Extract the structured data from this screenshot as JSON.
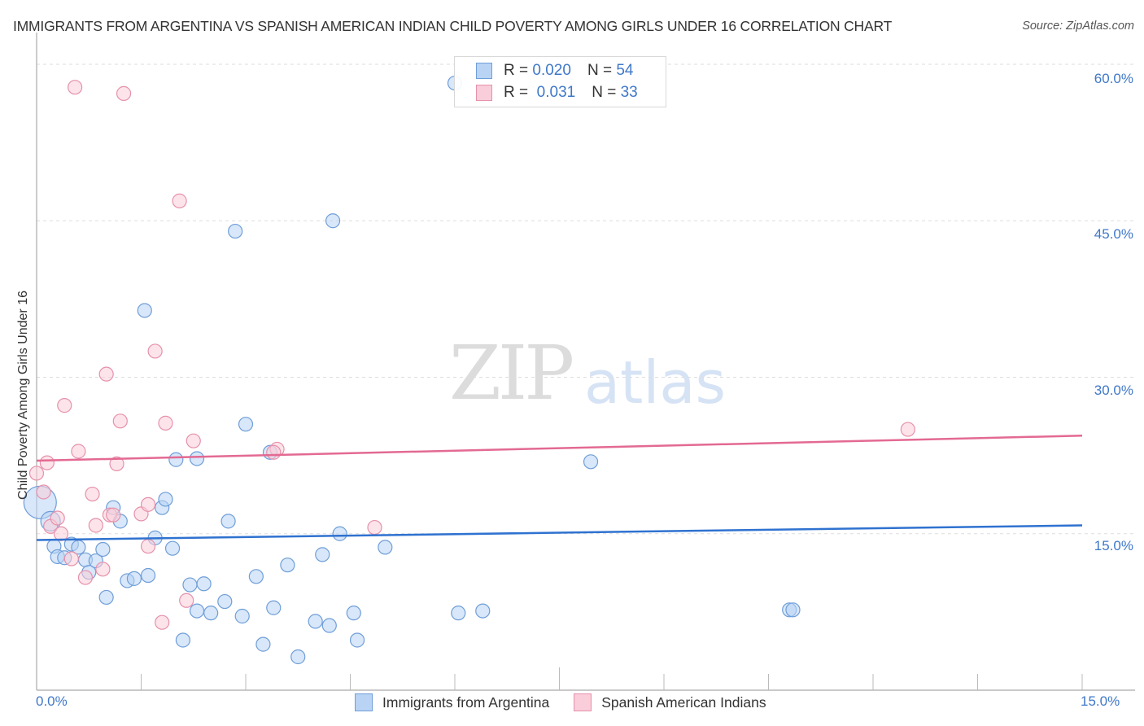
{
  "header": {
    "title": "IMMIGRANTS FROM ARGENTINA VS SPANISH AMERICAN INDIAN CHILD POVERTY AMONG GIRLS UNDER 16 CORRELATION CHART",
    "source": "Source: ZipAtlas.com"
  },
  "watermark": {
    "zip": "ZIP",
    "atlas": "atlas"
  },
  "legend": {
    "series": [
      {
        "r_label": "R =",
        "r_value": "0.020",
        "n_label": "N =",
        "n_value": "54",
        "color": "#a9c8f0",
        "border": "#6f9ed8"
      },
      {
        "r_label": "R =",
        "r_value": "0.031",
        "n_label": "N =",
        "n_value": "33",
        "color": "#f8c4d2",
        "border": "#e691ab"
      }
    ]
  },
  "axes": {
    "ylabel": "Child Poverty Among Girls Under 16",
    "y_ticks": [
      "60.0%",
      "45.0%",
      "30.0%",
      "15.0%"
    ],
    "x_ticks": [
      "0.0%",
      "15.0%"
    ]
  },
  "bottom_legend": [
    {
      "label": "Immigrants from Argentina",
      "color": "#b8d3f4",
      "border": "#6f9ed8"
    },
    {
      "label": "Spanish American Indians",
      "color": "#f9cdd9",
      "border": "#e691ab"
    }
  ],
  "chart_data": {
    "type": "scatter",
    "title": "IMMIGRANTS FROM ARGENTINA VS SPANISH AMERICAN INDIAN CHILD POVERTY AMONG GIRLS UNDER 16 CORRELATION CHART",
    "xlabel": "Immigrants from Argentina",
    "ylabel": "Child Poverty Among Girls Under 16",
    "xlim": [
      0,
      15
    ],
    "ylim": [
      0,
      60
    ],
    "x_tick_labels": [
      "0.0%",
      "15.0%"
    ],
    "y_tick_labels": [
      "15.0%",
      "30.0%",
      "45.0%",
      "60.0%"
    ],
    "grid": "horizontal dashed",
    "legend_position": "top-center",
    "series": [
      {
        "name": "Immigrants from Argentina",
        "color": "#6f9ed8",
        "R": 0.02,
        "N": 54,
        "trend": {
          "x": [
            0,
            15
          ],
          "y": [
            14.4,
            15.8
          ]
        },
        "points": [
          [
            0.05,
            18.0
          ],
          [
            0.2,
            16.2
          ],
          [
            0.25,
            13.8
          ],
          [
            0.3,
            12.8
          ],
          [
            0.4,
            12.7
          ],
          [
            0.5,
            14.0
          ],
          [
            0.6,
            13.7
          ],
          [
            0.7,
            12.5
          ],
          [
            0.75,
            11.3
          ],
          [
            0.85,
            12.4
          ],
          [
            0.95,
            13.5
          ],
          [
            1.0,
            8.9
          ],
          [
            1.1,
            17.5
          ],
          [
            1.2,
            16.2
          ],
          [
            1.3,
            10.5
          ],
          [
            1.4,
            10.7
          ],
          [
            1.55,
            36.4
          ],
          [
            1.6,
            11.0
          ],
          [
            1.7,
            14.6
          ],
          [
            1.8,
            17.5
          ],
          [
            1.85,
            18.3
          ],
          [
            1.95,
            13.6
          ],
          [
            2.0,
            22.1
          ],
          [
            2.1,
            4.8
          ],
          [
            2.2,
            10.1
          ],
          [
            2.3,
            7.6
          ],
          [
            2.3,
            22.2
          ],
          [
            2.4,
            10.2
          ],
          [
            2.5,
            7.4
          ],
          [
            2.7,
            8.5
          ],
          [
            2.75,
            16.2
          ],
          [
            2.85,
            44.0
          ],
          [
            2.95,
            7.1
          ],
          [
            3.0,
            25.5
          ],
          [
            3.15,
            10.9
          ],
          [
            3.25,
            4.4
          ],
          [
            3.35,
            22.8
          ],
          [
            3.4,
            7.9
          ],
          [
            3.6,
            12.0
          ],
          [
            3.75,
            3.2
          ],
          [
            4.0,
            6.6
          ],
          [
            4.1,
            13.0
          ],
          [
            4.2,
            6.2
          ],
          [
            4.25,
            45.0
          ],
          [
            4.35,
            15.0
          ],
          [
            4.55,
            7.4
          ],
          [
            4.6,
            4.8
          ],
          [
            5.0,
            13.7
          ],
          [
            6.0,
            58.2
          ],
          [
            6.05,
            7.4
          ],
          [
            6.4,
            7.6
          ],
          [
            7.95,
            21.9
          ],
          [
            10.8,
            7.7
          ],
          [
            10.85,
            7.7
          ]
        ]
      },
      {
        "name": "Spanish American Indians",
        "color": "#e691ab",
        "R": 0.031,
        "N": 33,
        "trend": {
          "x": [
            0,
            15
          ],
          "y": [
            22.0,
            24.4
          ]
        },
        "points": [
          [
            0.0,
            20.8
          ],
          [
            0.1,
            19.0
          ],
          [
            0.15,
            21.8
          ],
          [
            0.2,
            15.7
          ],
          [
            0.3,
            16.5
          ],
          [
            0.35,
            15.0
          ],
          [
            0.4,
            27.3
          ],
          [
            0.5,
            12.6
          ],
          [
            0.55,
            57.8
          ],
          [
            0.6,
            22.9
          ],
          [
            0.7,
            10.8
          ],
          [
            0.8,
            18.8
          ],
          [
            0.85,
            15.8
          ],
          [
            0.95,
            11.6
          ],
          [
            1.0,
            30.3
          ],
          [
            1.05,
            16.8
          ],
          [
            1.1,
            16.8
          ],
          [
            1.15,
            21.7
          ],
          [
            1.2,
            25.8
          ],
          [
            1.25,
            57.2
          ],
          [
            1.5,
            16.9
          ],
          [
            1.6,
            17.8
          ],
          [
            1.6,
            13.8
          ],
          [
            1.7,
            32.5
          ],
          [
            1.8,
            6.5
          ],
          [
            1.85,
            25.6
          ],
          [
            2.05,
            46.9
          ],
          [
            2.15,
            8.6
          ],
          [
            2.25,
            23.9
          ],
          [
            3.45,
            23.1
          ],
          [
            4.85,
            15.6
          ],
          [
            12.5,
            25.0
          ],
          [
            3.4,
            22.8
          ]
        ]
      }
    ]
  }
}
